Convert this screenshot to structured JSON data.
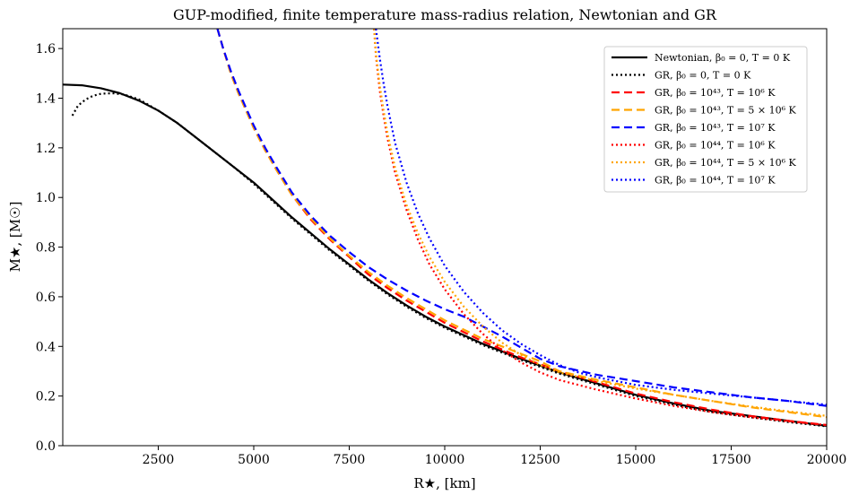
{
  "chart_data": {
    "type": "line",
    "title": "GUP-modified, finite temperature mass-radius relation, Newtonian and GR",
    "xlabel": "R★, [km]",
    "ylabel": "M★, [M☉]",
    "xlim": [
      0,
      20000
    ],
    "ylim": [
      0.0,
      1.68
    ],
    "xticks": [
      2500,
      5000,
      7500,
      10000,
      12500,
      15000,
      17500,
      20000
    ],
    "yticks": [
      0.0,
      0.2,
      0.4,
      0.6,
      0.8,
      1.0,
      1.2,
      1.4,
      1.6
    ],
    "xtick_labels": [
      "2500",
      "5000",
      "7500",
      "10000",
      "12500",
      "15000",
      "17500",
      "20000"
    ],
    "ytick_labels": [
      "0.0",
      "0.2",
      "0.4",
      "0.6",
      "0.8",
      "1.0",
      "1.2",
      "1.4",
      "1.6"
    ],
    "grid": false,
    "legend_position": "top-right",
    "series": [
      {
        "name": "Newtonian, β₀ = 0, T = 0 K",
        "color": "#000000",
        "style": "solid",
        "x": [
          0,
          500,
          1000,
          1500,
          2000,
          2500,
          3000,
          3500,
          4000,
          4500,
          5000,
          5500,
          6000,
          6500,
          7000,
          7500,
          8000,
          8500,
          9000,
          9500,
          10000,
          11000,
          12000,
          13000,
          14000,
          15000,
          16000,
          17000,
          18000,
          19000,
          20000
        ],
        "y": [
          1.455,
          1.452,
          1.44,
          1.42,
          1.39,
          1.35,
          1.3,
          1.24,
          1.18,
          1.12,
          1.06,
          0.99,
          0.92,
          0.855,
          0.79,
          0.73,
          0.67,
          0.615,
          0.565,
          0.52,
          0.48,
          0.41,
          0.35,
          0.295,
          0.25,
          0.205,
          0.17,
          0.14,
          0.12,
          0.1,
          0.08
        ]
      },
      {
        "name": "GR, β₀ = 0, T = 0 K",
        "color": "#000000",
        "style": "dotted",
        "x": [
          250,
          400,
          600,
          800,
          1000,
          1300,
          1600,
          2000,
          2500,
          3000,
          3500,
          4000,
          4500,
          5000,
          5500,
          6000,
          6500,
          7000,
          7500,
          8000,
          8500,
          9000,
          9500,
          10000,
          11000,
          12000,
          13000,
          14000,
          15000,
          16000,
          17000,
          18000,
          19000,
          20000
        ],
        "y": [
          1.33,
          1.37,
          1.395,
          1.41,
          1.418,
          1.42,
          1.415,
          1.395,
          1.35,
          1.3,
          1.24,
          1.18,
          1.12,
          1.055,
          0.985,
          0.915,
          0.85,
          0.785,
          0.725,
          0.665,
          0.61,
          0.56,
          0.515,
          0.475,
          0.405,
          0.345,
          0.29,
          0.245,
          0.2,
          0.165,
          0.135,
          0.115,
          0.095,
          0.078
        ]
      },
      {
        "name": "GR, β₀ = 10⁴³, T = 10⁶ K",
        "color": "#ff0000",
        "style": "dashed",
        "x": [
          4050,
          4200,
          4400,
          4600,
          4800,
          5000,
          5300,
          5600,
          6000,
          6500,
          7000,
          7500,
          8000,
          8500,
          9000,
          9500,
          10000,
          11000,
          12000,
          13000,
          14000,
          15000,
          16000,
          17000,
          18000,
          19000,
          20000
        ],
        "y": [
          1.68,
          1.6,
          1.5,
          1.42,
          1.35,
          1.28,
          1.19,
          1.11,
          1.01,
          0.91,
          0.83,
          0.76,
          0.69,
          0.635,
          0.585,
          0.54,
          0.495,
          0.42,
          0.355,
          0.3,
          0.255,
          0.21,
          0.175,
          0.145,
          0.12,
          0.1,
          0.083
        ]
      },
      {
        "name": "GR, β₀ = 10⁴³, T = 5 × 10⁶ K",
        "color": "#ffa500",
        "style": "dashed",
        "x": [
          4050,
          4200,
          4400,
          4600,
          4800,
          5000,
          5300,
          5600,
          6000,
          6500,
          7000,
          7500,
          8000,
          8500,
          9000,
          9500,
          10000,
          11000,
          12000,
          12500,
          13000,
          14000,
          15000,
          16000,
          17000,
          18000,
          19000,
          20000
        ],
        "y": [
          1.68,
          1.6,
          1.5,
          1.42,
          1.35,
          1.28,
          1.19,
          1.11,
          1.01,
          0.915,
          0.835,
          0.765,
          0.7,
          0.645,
          0.595,
          0.55,
          0.505,
          0.43,
          0.37,
          0.34,
          0.3,
          0.265,
          0.235,
          0.205,
          0.18,
          0.155,
          0.135,
          0.115
        ]
      },
      {
        "name": "GR, β₀ = 10⁴³, T = 10⁷ K",
        "color": "#0000ff",
        "style": "dashed",
        "x": [
          4050,
          4200,
          4400,
          4600,
          4800,
          5000,
          5300,
          5600,
          6000,
          6500,
          7000,
          7500,
          8000,
          8500,
          9000,
          9500,
          10000,
          10500,
          11000,
          11500,
          12000,
          12500,
          13000,
          14000,
          15000,
          16000,
          17000,
          18000,
          19000,
          20000
        ],
        "y": [
          1.68,
          1.6,
          1.51,
          1.43,
          1.36,
          1.29,
          1.2,
          1.12,
          1.02,
          0.925,
          0.845,
          0.78,
          0.72,
          0.67,
          0.625,
          0.585,
          0.55,
          0.52,
          0.48,
          0.44,
          0.395,
          0.35,
          0.32,
          0.285,
          0.26,
          0.235,
          0.215,
          0.195,
          0.18,
          0.16
        ]
      },
      {
        "name": "GR, β₀ = 10⁴⁴, T = 10⁶ K",
        "color": "#ff0000",
        "style": "dotted",
        "x": [
          8150,
          8200,
          8300,
          8400,
          8500,
          8700,
          9000,
          9300,
          9600,
          10000,
          10500,
          11000,
          11500,
          12000,
          12500,
          13000,
          14000,
          15000,
          16000,
          17000,
          18000,
          19000,
          20000
        ],
        "y": [
          1.68,
          1.57,
          1.43,
          1.33,
          1.24,
          1.1,
          0.95,
          0.83,
          0.73,
          0.63,
          0.53,
          0.45,
          0.385,
          0.335,
          0.295,
          0.265,
          0.225,
          0.19,
          0.16,
          0.135,
          0.115,
          0.098,
          0.083
        ]
      },
      {
        "name": "GR, β₀ = 10⁴⁴, T = 5 × 10⁶ K",
        "color": "#ffa500",
        "style": "dotted",
        "x": [
          8150,
          8200,
          8300,
          8400,
          8500,
          8700,
          9000,
          9300,
          9600,
          10000,
          10500,
          11000,
          11500,
          12000,
          12500,
          13000,
          14000,
          15000,
          16000,
          17000,
          18000,
          19000,
          20000
        ],
        "y": [
          1.68,
          1.58,
          1.45,
          1.35,
          1.26,
          1.12,
          0.97,
          0.855,
          0.76,
          0.66,
          0.56,
          0.48,
          0.415,
          0.365,
          0.325,
          0.295,
          0.26,
          0.23,
          0.205,
          0.18,
          0.158,
          0.138,
          0.12
        ]
      },
      {
        "name": "GR, β₀ = 10⁴⁴, T = 10⁷ K",
        "color": "#0000ff",
        "style": "dotted",
        "x": [
          8200,
          8300,
          8400,
          8500,
          8700,
          9000,
          9300,
          9600,
          10000,
          10500,
          11000,
          11500,
          12000,
          12500,
          13000,
          13500,
          14000,
          15000,
          16000,
          17000,
          18000,
          19000,
          20000
        ],
        "y": [
          1.68,
          1.56,
          1.46,
          1.37,
          1.22,
          1.06,
          0.935,
          0.835,
          0.725,
          0.62,
          0.535,
          0.465,
          0.41,
          0.365,
          0.325,
          0.295,
          0.275,
          0.245,
          0.225,
          0.21,
          0.195,
          0.18,
          0.165
        ]
      }
    ]
  }
}
